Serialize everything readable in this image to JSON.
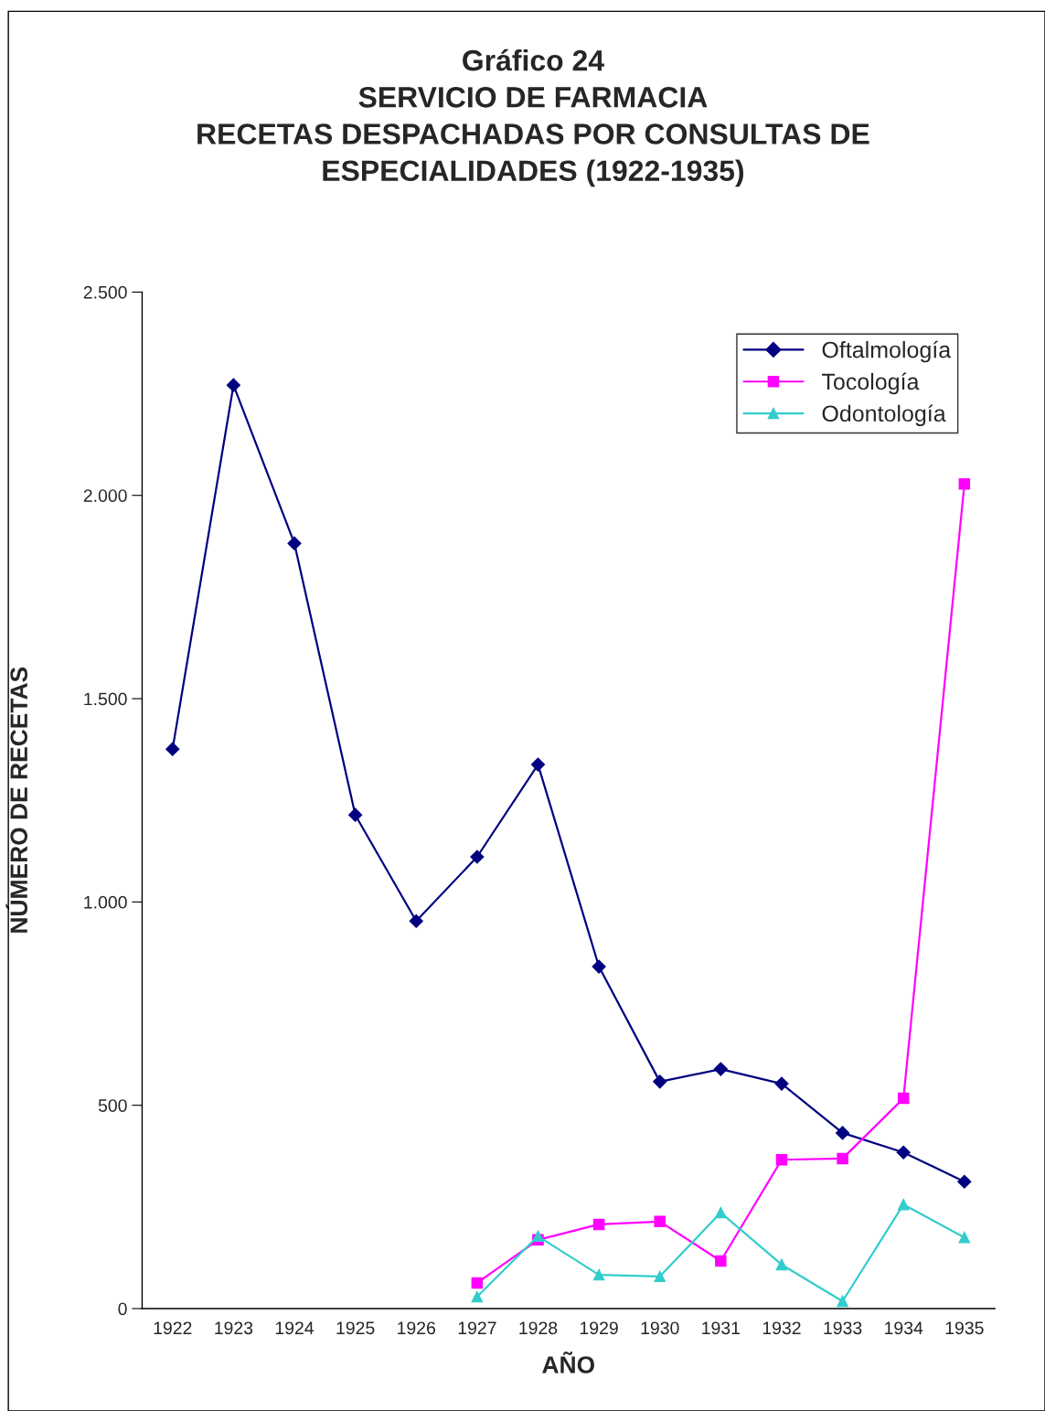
{
  "chart_data": {
    "type": "line",
    "title": "Gráfico 24\nSERVICIO DE FARMACIA\nRECETAS DESPACHADAS POR CONSULTAS DE\nESPECIALIDADES (1922-1935)",
    "xlabel": "AÑO",
    "ylabel": "NÚMERO DE RECETAS",
    "categories": [
      "1922",
      "1923",
      "1924",
      "1925",
      "1926",
      "1927",
      "1928",
      "1929",
      "1930",
      "1931",
      "1932",
      "1933",
      "1934",
      "1935"
    ],
    "series": [
      {
        "name": "Oftalmología",
        "color": "#000080",
        "marker": "diamond",
        "values": [
          1376,
          2271,
          1882,
          1214,
          953,
          1111,
          1338,
          841,
          558,
          589,
          553,
          432,
          384,
          312
        ]
      },
      {
        "name": "Tocología",
        "color": "#ff00ff",
        "marker": "square",
        "values": [
          null,
          null,
          null,
          null,
          null,
          63,
          169,
          207,
          214,
          117,
          366,
          369,
          517,
          2028
        ]
      },
      {
        "name": "Odontología",
        "color": "#33cccc",
        "marker": "triangle",
        "values": [
          null,
          null,
          null,
          null,
          null,
          29,
          178,
          83,
          79,
          236,
          108,
          18,
          256,
          175
        ]
      }
    ],
    "ylim": [
      0,
      2500
    ],
    "yticks": [
      0,
      500,
      {
        "value": 1000,
        "label": "1.000"
      },
      {
        "value": 1500,
        "label": "1.500"
      },
      {
        "value": 2000,
        "label": "2.000"
      },
      {
        "value": 2500,
        "label": "2.500"
      }
    ],
    "grid": false,
    "legend": "top right",
    "line_style": "solid"
  }
}
